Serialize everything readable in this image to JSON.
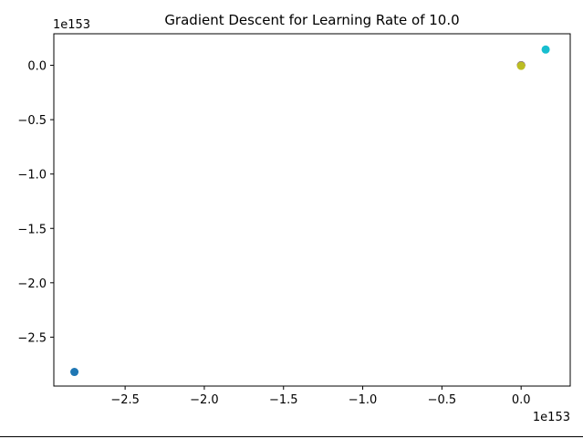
{
  "chart_data": {
    "type": "scatter",
    "title": "Gradient Descent for Learning Rate of 10.0",
    "xlabel": "",
    "ylabel": "",
    "x_offset_label": "1e153",
    "y_offset_label": "1e153",
    "xlim": [
      -2.95,
      0.31
    ],
    "ylim": [
      -2.95,
      0.29
    ],
    "x_ticks": [
      -2.5,
      -2.0,
      -1.5,
      -1.0,
      -0.5,
      0.0
    ],
    "x_tick_labels": [
      "−2.5",
      "−2.0",
      "−1.5",
      "−1.0",
      "−0.5",
      "0.0"
    ],
    "y_ticks": [
      0.0,
      -0.5,
      -1.0,
      -1.5,
      -2.0,
      -2.5
    ],
    "y_tick_labels": [
      "0.0",
      "−0.5",
      "−1.0",
      "−1.5",
      "−2.0",
      "−2.5"
    ],
    "grid": false,
    "points": [
      {
        "x": -2.82,
        "y": -2.82,
        "color": "#1f77b4"
      },
      {
        "x": 0.155,
        "y": 0.145,
        "color": "#17becf"
      },
      {
        "x": 0.0,
        "y": 0.0,
        "color": "#2ca02c"
      },
      {
        "x": 0.0,
        "y": 0.0,
        "color": "#d62728"
      },
      {
        "x": 0.0,
        "y": 0.0,
        "color": "#9467bd"
      },
      {
        "x": 0.0,
        "y": 0.0,
        "color": "#8c564b"
      },
      {
        "x": 0.0,
        "y": 0.0,
        "color": "#e377c2"
      },
      {
        "x": 0.0,
        "y": 0.0,
        "color": "#7f7f7f"
      },
      {
        "x": 0.0,
        "y": -0.005,
        "color": "#bcbd22"
      }
    ]
  }
}
